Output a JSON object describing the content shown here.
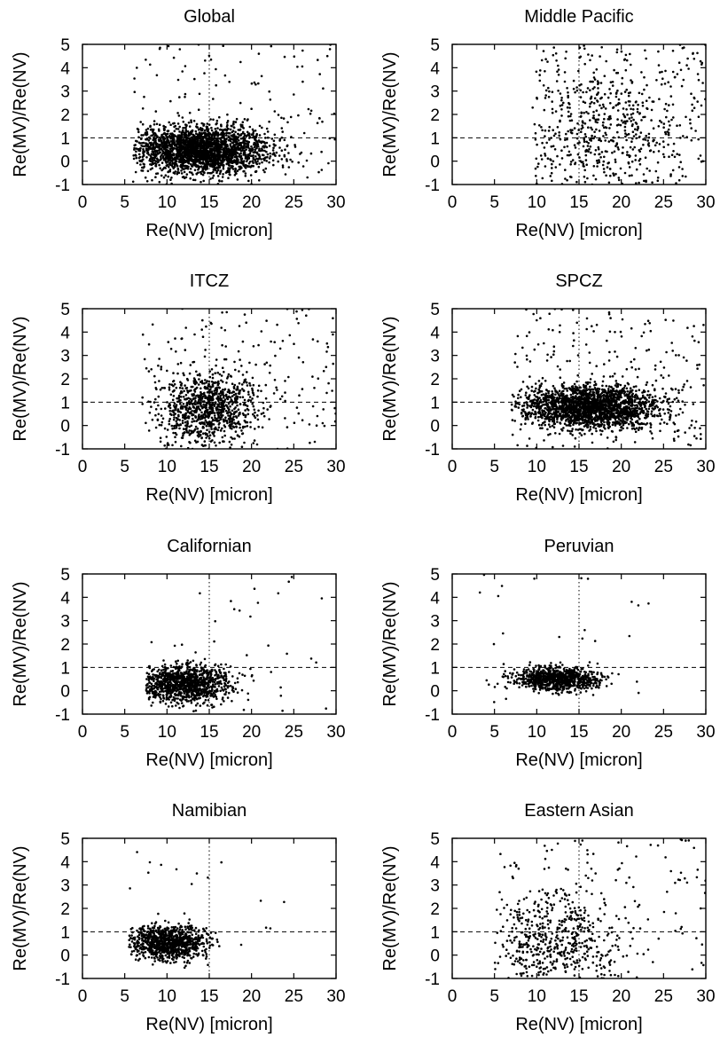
{
  "figure": {
    "panels": [
      {
        "title": "Global",
        "xlabel": "Re(NV) [micron]",
        "ylabel": "Re(MV)/Re(NV)"
      },
      {
        "title": "Middle Pacific",
        "xlabel": "Re(NV) [micron]",
        "ylabel": "Re(MV)/Re(NV)"
      },
      {
        "title": "ITCZ",
        "xlabel": "Re(NV) [micron]",
        "ylabel": "Re(MV)/Re(NV)"
      },
      {
        "title": "SPCZ",
        "xlabel": "Re(NV) [micron]",
        "ylabel": "Re(MV)/Re(NV)"
      },
      {
        "title": "Californian",
        "xlabel": "Re(NV) [micron]",
        "ylabel": "Re(MV)/Re(NV)"
      },
      {
        "title": "Peruvian",
        "xlabel": "Re(NV) [micron]",
        "ylabel": "Re(MV)/Re(NV)"
      },
      {
        "title": "Namibian",
        "xlabel": "Re(NV) [micron]",
        "ylabel": "Re(MV)/Re(NV)"
      },
      {
        "title": "Eastern Asian",
        "xlabel": "Re(NV) [micron]",
        "ylabel": "Re(MV)/Re(NV)"
      }
    ]
  },
  "chart_data": [
    {
      "type": "scatter",
      "title": "Global",
      "xlabel": "Re(NV) [micron]",
      "ylabel": "Re(MV)/Re(NV)",
      "xlim": [
        0,
        30
      ],
      "ylim": [
        -1,
        5
      ],
      "xticks": [
        "0",
        "5",
        "10",
        "15",
        "20",
        "25",
        "30"
      ],
      "yticks": [
        "-1",
        "0",
        "1",
        "2",
        "3",
        "4",
        "5"
      ],
      "grid": false,
      "ref_hline": 1,
      "ref_vline": 15,
      "series": [
        {
          "x_center": 14,
          "x_spread": 4,
          "x_range": [
            6,
            30
          ],
          "y_center": 0.5,
          "y_spread": 0.5,
          "n_points": 2500,
          "outlier_fraction": 0.06
        }
      ]
    },
    {
      "type": "scatter",
      "title": "Middle Pacific",
      "xlabel": "Re(NV) [micron]",
      "ylabel": "Re(MV)/Re(NV)",
      "xlim": [
        0,
        30
      ],
      "ylim": [
        -1,
        5
      ],
      "xticks": [
        "0",
        "5",
        "10",
        "15",
        "20",
        "25",
        "30"
      ],
      "yticks": [
        "-1",
        "0",
        "1",
        "2",
        "3",
        "4",
        "5"
      ],
      "grid": false,
      "ref_hline": 1,
      "ref_vline": 15,
      "series": [
        {
          "x_center": 18,
          "x_spread": 4.5,
          "x_range": [
            9.5,
            30
          ],
          "y_center": 1.6,
          "y_spread": 1.6,
          "n_points": 700,
          "outlier_fraction": 0.3
        }
      ]
    },
    {
      "type": "scatter",
      "title": "ITCZ",
      "xlabel": "Re(NV) [micron]",
      "ylabel": "Re(MV)/Re(NV)",
      "xlim": [
        0,
        30
      ],
      "ylim": [
        -1,
        5
      ],
      "xticks": [
        "0",
        "5",
        "10",
        "15",
        "20",
        "25",
        "30"
      ],
      "yticks": [
        "-1",
        "0",
        "1",
        "2",
        "3",
        "4",
        "5"
      ],
      "grid": false,
      "ref_hline": 1,
      "ref_vline": 15,
      "series": [
        {
          "x_center": 15,
          "x_spread": 3,
          "x_range": [
            7,
            30
          ],
          "y_center": 0.7,
          "y_spread": 0.8,
          "n_points": 1100,
          "outlier_fraction": 0.15
        }
      ]
    },
    {
      "type": "scatter",
      "title": "SPCZ",
      "xlabel": "Re(NV) [micron]",
      "ylabel": "Re(MV)/Re(NV)",
      "xlim": [
        0,
        30
      ],
      "ylim": [
        -1,
        5
      ],
      "xticks": [
        "0",
        "5",
        "10",
        "15",
        "20",
        "25",
        "30"
      ],
      "yticks": [
        "-1",
        "0",
        "1",
        "2",
        "3",
        "4",
        "5"
      ],
      "grid": false,
      "ref_hline": 1,
      "ref_vline": 15,
      "series": [
        {
          "x_center": 16.5,
          "x_spread": 4,
          "x_range": [
            7,
            30
          ],
          "y_center": 0.8,
          "y_spread": 0.45,
          "n_points": 2300,
          "outlier_fraction": 0.1
        }
      ]
    },
    {
      "type": "scatter",
      "title": "Californian",
      "xlabel": "Re(NV) [micron]",
      "ylabel": "Re(MV)/Re(NV)",
      "xlim": [
        0,
        30
      ],
      "ylim": [
        -1,
        5
      ],
      "xticks": [
        "0",
        "5",
        "10",
        "15",
        "20",
        "25",
        "30"
      ],
      "yticks": [
        "-1",
        "0",
        "1",
        "2",
        "3",
        "4",
        "5"
      ],
      "grid": false,
      "ref_hline": 1,
      "ref_vline": 15,
      "series": [
        {
          "x_center": 12,
          "x_spread": 2.8,
          "x_range": [
            7.5,
            29
          ],
          "y_center": 0.3,
          "y_spread": 0.4,
          "n_points": 1100,
          "outlier_fraction": 0.03
        }
      ]
    },
    {
      "type": "scatter",
      "title": "Peruvian",
      "xlabel": "Re(NV) [micron]",
      "ylabel": "Re(MV)/Re(NV)",
      "xlim": [
        0,
        30
      ],
      "ylim": [
        -1,
        5
      ],
      "xticks": [
        "0",
        "5",
        "10",
        "15",
        "20",
        "25",
        "30"
      ],
      "yticks": [
        "-1",
        "0",
        "1",
        "2",
        "3",
        "4",
        "5"
      ],
      "grid": false,
      "ref_hline": 1,
      "ref_vline": 15,
      "series": [
        {
          "x_center": 12.5,
          "x_spread": 2.5,
          "x_range": [
            2.5,
            29
          ],
          "y_center": 0.5,
          "y_spread": 0.25,
          "n_points": 900,
          "outlier_fraction": 0.03
        }
      ]
    },
    {
      "type": "scatter",
      "title": "Namibian",
      "xlabel": "Re(NV) [micron]",
      "ylabel": "Re(MV)/Re(NV)",
      "xlim": [
        0,
        30
      ],
      "ylim": [
        -1,
        5
      ],
      "xticks": [
        "0",
        "5",
        "10",
        "15",
        "20",
        "25",
        "30"
      ],
      "yticks": [
        "-1",
        "0",
        "1",
        "2",
        "3",
        "4",
        "5"
      ],
      "grid": false,
      "ref_hline": 1,
      "ref_vline": 15,
      "series": [
        {
          "x_center": 10,
          "x_spread": 2.3,
          "x_range": [
            5.5,
            24
          ],
          "y_center": 0.55,
          "y_spread": 0.35,
          "n_points": 1000,
          "outlier_fraction": 0.02
        }
      ]
    },
    {
      "type": "scatter",
      "title": "Eastern Asian",
      "xlabel": "Re(NV) [micron]",
      "ylabel": "Re(MV)/Re(NV)",
      "xlim": [
        0,
        30
      ],
      "ylim": [
        -1,
        5
      ],
      "xticks": [
        "0",
        "5",
        "10",
        "15",
        "20",
        "25",
        "30"
      ],
      "yticks": [
        "-1",
        "0",
        "1",
        "2",
        "3",
        "4",
        "5"
      ],
      "grid": false,
      "ref_hline": 1,
      "ref_vline": 15,
      "series": [
        {
          "x_center": 12,
          "x_spread": 4,
          "x_range": [
            5,
            30
          ],
          "y_center": 0.7,
          "y_spread": 1.1,
          "n_points": 650,
          "outlier_fraction": 0.2
        }
      ]
    }
  ]
}
